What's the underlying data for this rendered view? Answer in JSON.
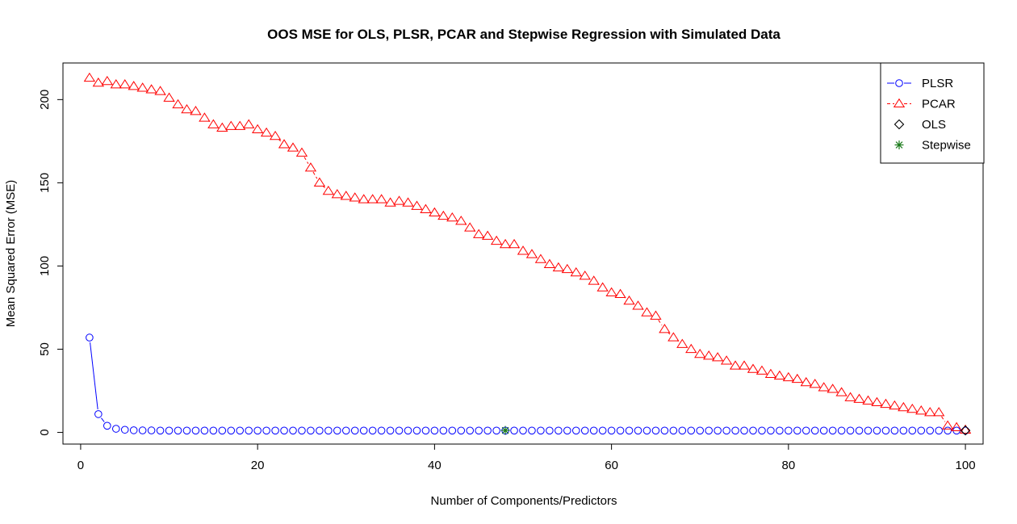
{
  "chart_data": {
    "type": "line",
    "title": "OOS MSE for OLS, PLSR, PCAR and Stepwise Regression with Simulated Data",
    "xlabel": "Number of Components/Predictors",
    "ylabel": "Mean Squared Error (MSE)",
    "xlim": [
      -2,
      102
    ],
    "ylim": [
      -7,
      222
    ],
    "xticks": [
      0,
      20,
      40,
      60,
      80,
      100
    ],
    "yticks": [
      0,
      50,
      100,
      150,
      200
    ],
    "grid": false,
    "legend_position": "top-right",
    "series": [
      {
        "name": "PLSR",
        "color": "#0000ff",
        "marker": "circle",
        "line": "solid",
        "x": [
          1,
          2,
          3,
          4,
          5,
          6,
          7,
          8,
          9,
          10,
          11,
          12,
          13,
          14,
          15,
          16,
          17,
          18,
          19,
          20,
          21,
          22,
          23,
          24,
          25,
          26,
          27,
          28,
          29,
          30,
          31,
          32,
          33,
          34,
          35,
          36,
          37,
          38,
          39,
          40,
          41,
          42,
          43,
          44,
          45,
          46,
          47,
          48,
          49,
          50,
          51,
          52,
          53,
          54,
          55,
          56,
          57,
          58,
          59,
          60,
          61,
          62,
          63,
          64,
          65,
          66,
          67,
          68,
          69,
          70,
          71,
          72,
          73,
          74,
          75,
          76,
          77,
          78,
          79,
          80,
          81,
          82,
          83,
          84,
          85,
          86,
          87,
          88,
          89,
          90,
          91,
          92,
          93,
          94,
          95,
          96,
          97,
          98,
          99,
          100
        ],
        "values": [
          57,
          11,
          4,
          2.2,
          1.6,
          1.3,
          1.2,
          1.2,
          1.1,
          1.1,
          1.1,
          1.1,
          1.1,
          1.1,
          1.1,
          1.1,
          1.1,
          1.1,
          1.1,
          1.1,
          1.1,
          1.1,
          1.1,
          1.1,
          1.1,
          1.1,
          1.1,
          1.1,
          1.1,
          1.1,
          1.1,
          1.1,
          1.1,
          1.1,
          1.1,
          1.1,
          1.1,
          1.1,
          1.1,
          1.1,
          1.1,
          1.1,
          1.1,
          1.1,
          1.1,
          1.1,
          1.1,
          1.1,
          1.1,
          1.1,
          1.1,
          1.1,
          1.1,
          1.1,
          1.1,
          1.1,
          1.1,
          1.1,
          1.1,
          1.1,
          1.1,
          1.1,
          1.1,
          1.1,
          1.1,
          1.1,
          1.1,
          1.1,
          1.1,
          1.1,
          1.1,
          1.1,
          1.1,
          1.1,
          1.1,
          1.1,
          1.1,
          1.1,
          1.1,
          1.1,
          1.1,
          1.1,
          1.1,
          1.1,
          1.1,
          1.1,
          1.1,
          1.1,
          1.1,
          1.1,
          1.1,
          1.1,
          1.1,
          1.1,
          1.1,
          1.1,
          1.1,
          1.1,
          1.1,
          1.1
        ]
      },
      {
        "name": "PCAR",
        "color": "#ff0000",
        "marker": "triangle",
        "line": "dashed",
        "x": [
          1,
          2,
          3,
          4,
          5,
          6,
          7,
          8,
          9,
          10,
          11,
          12,
          13,
          14,
          15,
          16,
          17,
          18,
          19,
          20,
          21,
          22,
          23,
          24,
          25,
          26,
          27,
          28,
          29,
          30,
          31,
          32,
          33,
          34,
          35,
          36,
          37,
          38,
          39,
          40,
          41,
          42,
          43,
          44,
          45,
          46,
          47,
          48,
          49,
          50,
          51,
          52,
          53,
          54,
          55,
          56,
          57,
          58,
          59,
          60,
          61,
          62,
          63,
          64,
          65,
          66,
          67,
          68,
          69,
          70,
          71,
          72,
          73,
          74,
          75,
          76,
          77,
          78,
          79,
          80,
          81,
          82,
          83,
          84,
          85,
          86,
          87,
          88,
          89,
          90,
          91,
          92,
          93,
          94,
          95,
          96,
          97,
          98,
          99,
          100
        ],
        "values": [
          213,
          210,
          211,
          209,
          209,
          208,
          207,
          206,
          205,
          201,
          197,
          194,
          193,
          189,
          185,
          183,
          184,
          184,
          185,
          182,
          180,
          178,
          173,
          171,
          168,
          159,
          150,
          145,
          143,
          142,
          141,
          140,
          140,
          140,
          138,
          139,
          138,
          136,
          134,
          132,
          130,
          129,
          127,
          123,
          119,
          118,
          115,
          113,
          113,
          109,
          107,
          104,
          101,
          99,
          98,
          96,
          94,
          91,
          87,
          84,
          83,
          79,
          76,
          72,
          70,
          62,
          57,
          53,
          50,
          47,
          46,
          45,
          43,
          40,
          40,
          38,
          37,
          35,
          34,
          33,
          32,
          30,
          29,
          27,
          26,
          24,
          21,
          20,
          19,
          18,
          17,
          16,
          15,
          14,
          13,
          12,
          12,
          4,
          3,
          1.5
        ]
      },
      {
        "name": "OLS",
        "color": "#000000",
        "marker": "diamond",
        "line": "none",
        "x": [
          100
        ],
        "values": [
          1.2
        ]
      },
      {
        "name": "Stepwise",
        "color": "#1a7a1a",
        "marker": "star",
        "line": "none",
        "x": [
          48
        ],
        "values": [
          1.2
        ]
      }
    ]
  }
}
